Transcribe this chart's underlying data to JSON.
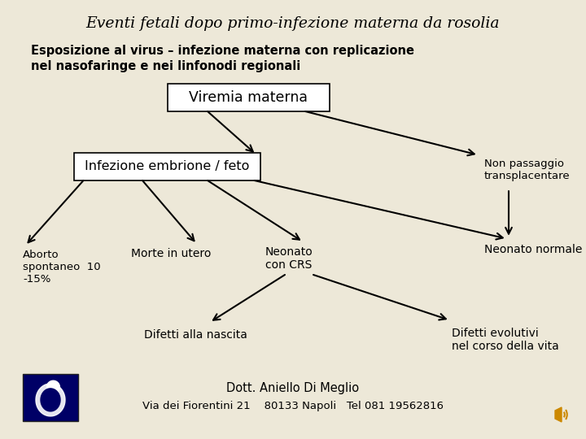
{
  "title": "Eventi fetali dopo primo-infezione materna da rosolia",
  "subtitle_line1": "Esposizione al virus – infezione materna con replicazione",
  "subtitle_line2": "nel nasofaringe e nei linfonodi regionali",
  "box1_text": "Viremia materna",
  "box2_text": "Infezione embrione / feto",
  "node_aborto": "Aborto\nspontaneo  10\n-15%",
  "node_morte": "Morte in utero",
  "node_neonato_crs": "Neonato\ncon CRS",
  "node_neonato_norm": "Neonato normale",
  "node_non_passaggio": "Non passaggio\ntransplacentare",
  "node_difetti_nascita": "Difetti alla nascita",
  "node_difetti_evolutivi": "Difetti evolutivi\nnel corso della vita",
  "footer_line1": "Dott. Aniello Di Meglio",
  "footer_line2": "Via dei Fiorentini 21    80133 Napoli   Tel 081 19562816",
  "bg_color": "#ede8d8",
  "text_color": "#000000",
  "box_edge_color": "#000000",
  "arrow_color": "#000000",
  "fetus_bg": "#000066",
  "speaker_color": "#cc8800"
}
